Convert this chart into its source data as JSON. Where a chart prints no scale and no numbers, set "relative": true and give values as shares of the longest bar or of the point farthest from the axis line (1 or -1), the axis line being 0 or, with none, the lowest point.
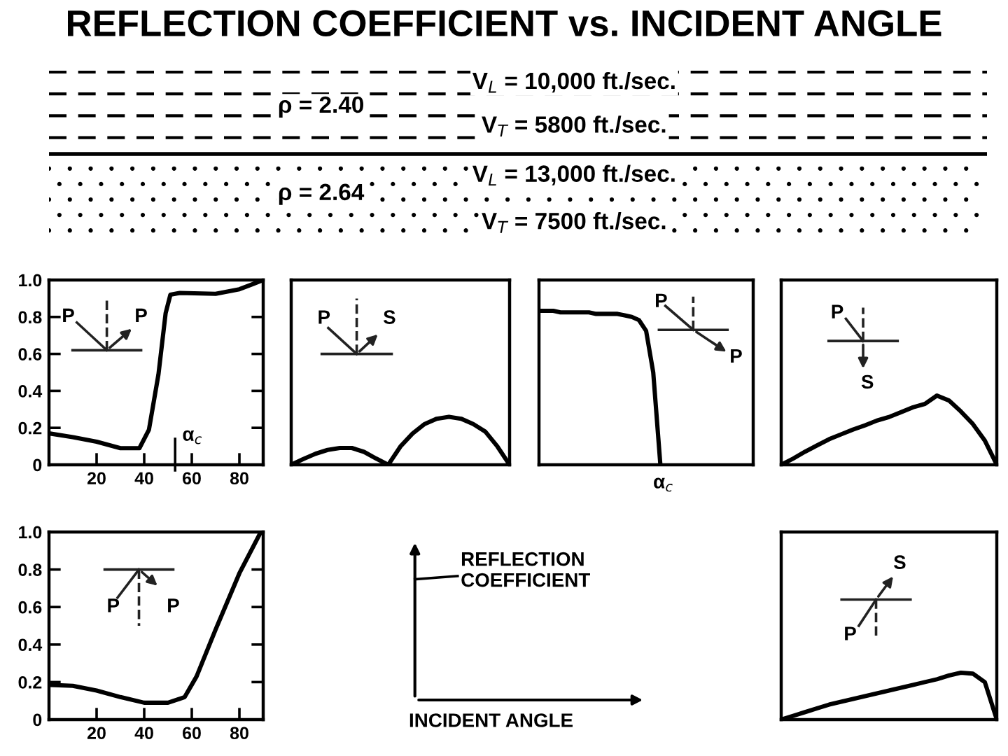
{
  "chart_data": [
    {
      "type": "other",
      "title": "REFLECTION COEFFICIENT vs. INCIDENT ANGLE",
      "annotations": [
        "ρ = 2.40",
        "V$_{L}$ = 10,000 ft./sec.",
        "V$_{T}$ = 5800 ft./sec.",
        "ρ = 2.64",
        "V$_{L}$ = 13,000 ft./sec.",
        "V$_{T}$ = 7500 ft./sec."
      ]
    },
    {
      "type": "line",
      "xlim": [
        0,
        90
      ],
      "ylim": [
        0,
        1
      ],
      "xticks": [
        20,
        40,
        60,
        80
      ],
      "yticks": [
        0,
        0.2,
        0.4,
        0.6,
        0.8,
        {
          "value": 1,
          "label": "1.0"
        }
      ],
      "line_style": "solid",
      "annotations": [
        "P",
        "P"
      ],
      "ref_lines": [
        {
          "axis": "x",
          "value": 53,
          "label": "α$_{c}$"
        }
      ],
      "series": [
        {
          "color": "#000000",
          "x": [
            0,
            10,
            20,
            30,
            38,
            42,
            46,
            49,
            51,
            55,
            70,
            80,
            86,
            90
          ],
          "values": [
            0.17,
            0.15,
            0.125,
            0.09,
            0.09,
            0.19,
            0.49,
            0.82,
            0.92,
            0.93,
            0.925,
            0.95,
            0.98,
            1.0
          ]
        }
      ]
    },
    {
      "type": "line",
      "relative": true,
      "line_style": "solid",
      "annotations": [
        "P",
        "S"
      ],
      "categories": [
        null,
        null,
        null,
        null,
        null,
        null,
        null,
        null,
        null,
        null,
        null,
        null,
        null,
        null,
        null,
        null,
        null,
        null,
        null
      ],
      "series": [
        {
          "color": "#000000",
          "values": [
            0,
            0.12,
            0.23,
            0.31,
            0.35,
            0.35,
            0.27,
            0.13,
            0,
            0.38,
            0.65,
            0.85,
            0.96,
            1,
            0.96,
            0.85,
            0.69,
            0.38,
            0
          ]
        }
      ]
    },
    {
      "type": "line",
      "relative": true,
      "line_style": "solid",
      "annotations": [
        "P",
        "P",
        "α$_{c}$"
      ],
      "categories": [
        null,
        null,
        null,
        null,
        null,
        null,
        null,
        null,
        null,
        null,
        null,
        null,
        null,
        null,
        null,
        null,
        null,
        null,
        null,
        null,
        null,
        null,
        null,
        null,
        null,
        null,
        null,
        null,
        null,
        null,
        null
      ],
      "series": [
        {
          "color": "#000000",
          "values": [
            1,
            1,
            1,
            0.99,
            0.99,
            0.99,
            0.99,
            0.99,
            0.98,
            0.98,
            0.98,
            0.98,
            0.97,
            0.96,
            0.94,
            0.87,
            0.6,
            0,
            null,
            null,
            null,
            null,
            null,
            null,
            null,
            null,
            null,
            null,
            null,
            null,
            null
          ]
        }
      ]
    },
    {
      "type": "line",
      "relative": true,
      "line_style": "solid",
      "annotations": [
        "P",
        "S"
      ],
      "categories": [
        null,
        null,
        null,
        null,
        null,
        null,
        null,
        null,
        null,
        null,
        null,
        null,
        null,
        null,
        null,
        null,
        null,
        null,
        null
      ],
      "series": [
        {
          "color": "#000000",
          "values": [
            0,
            0.09,
            0.19,
            0.28,
            0.37,
            0.44,
            0.51,
            0.57,
            0.64,
            0.69,
            0.76,
            0.83,
            0.88,
            1,
            0.93,
            0.77,
            0.59,
            0.35,
            0
          ]
        }
      ]
    },
    {
      "type": "line",
      "xlim": [
        0,
        90
      ],
      "ylim": [
        0,
        1
      ],
      "xticks": [
        20,
        40,
        60,
        80
      ],
      "yticks": [
        0,
        0.2,
        0.4,
        0.6,
        0.8,
        {
          "value": 1,
          "label": "1.0"
        }
      ],
      "line_style": "solid",
      "annotations": [
        "P",
        "P"
      ],
      "series": [
        {
          "color": "#000000",
          "x": [
            0,
            10,
            20,
            30,
            40,
            50,
            57,
            62,
            70,
            80,
            89
          ],
          "values": [
            0.185,
            0.18,
            0.155,
            0.12,
            0.09,
            0.09,
            0.12,
            0.23,
            0.48,
            0.78,
            1.0
          ]
        }
      ]
    },
    {
      "type": "other",
      "annotations": [
        "REFLECTION\nCOEFFICIENT",
        "INCIDENT ANGLE"
      ]
    },
    {
      "type": "line",
      "relative": true,
      "line_style": "solid",
      "annotations": [
        "P",
        "S"
      ],
      "categories": [
        null,
        null,
        null,
        null,
        null,
        null,
        null,
        null,
        null,
        null,
        null,
        null,
        null,
        null,
        null,
        null,
        null,
        null,
        null
      ],
      "series": [
        {
          "color": "#000000",
          "values": [
            0,
            0.08,
            0.16,
            0.24,
            0.32,
            0.38,
            0.44,
            0.5,
            0.56,
            0.62,
            0.68,
            0.74,
            0.8,
            0.86,
            0.94,
            1,
            0.98,
            0.8,
            0
          ]
        }
      ]
    }
  ]
}
